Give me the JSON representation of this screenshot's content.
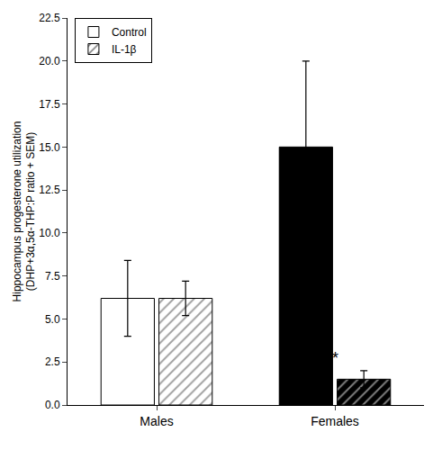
{
  "chart_data": {
    "type": "bar",
    "categories": [
      "Males",
      "Females"
    ],
    "series": [
      {
        "name": "Control",
        "values": [
          6.2,
          15.0
        ],
        "errors": [
          2.2,
          5.0
        ],
        "colors": [
          "white",
          "black"
        ]
      },
      {
        "name": "IL-1β",
        "values": [
          6.2,
          1.5
        ],
        "errors": [
          1.0,
          0.5
        ],
        "colors": [
          "white",
          "black"
        ],
        "marker": "hatch"
      }
    ],
    "ylabel": "Hippocampus progesterone utilization\n(DHP+3α,5α-THP:P ratio + SEM)",
    "ylim": [
      0,
      22.5
    ],
    "yticks": [
      {
        "value": 0,
        "label": "0.0"
      },
      2.5,
      {
        "value": 5,
        "label": "5.0"
      },
      7.5,
      {
        "value": 10,
        "label": "10.0"
      },
      12.5,
      {
        "value": 15,
        "label": "15.0"
      },
      17.5,
      {
        "value": 20,
        "label": "20.0"
      },
      22.5
    ],
    "grid": false,
    "legend": "upper left",
    "annotations": [
      {
        "text": "*",
        "series": "IL-1β",
        "category": "Females"
      }
    ]
  }
}
